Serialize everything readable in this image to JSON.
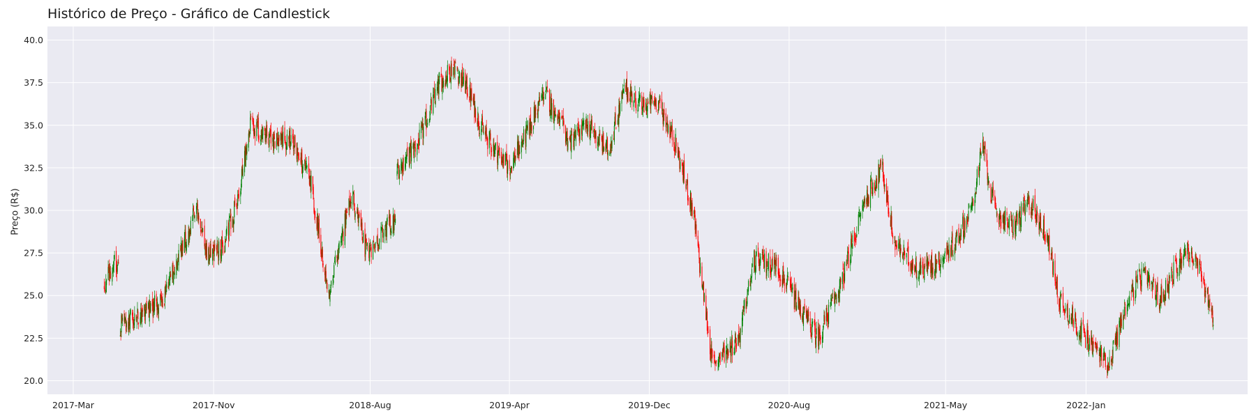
{
  "chart_data": {
    "type": "candlestick",
    "title": "Histórico de Preço - Gráfico de Candlestick",
    "xlabel": "",
    "ylabel": "Preço (R$)",
    "ylim": [
      19.2,
      40.8
    ],
    "yticks": [
      "20.0",
      "22.5",
      "25.0",
      "27.5",
      "30.0",
      "32.5",
      "35.0",
      "37.5",
      "40.0"
    ],
    "xticks": [
      "2017-Mar",
      "2017-Nov",
      "2018-Aug",
      "2019-Apr",
      "2019-Dec",
      "2020-Aug",
      "2021-May",
      "2022-Jan"
    ],
    "xtick_dates": [
      "2017-03-01",
      "2017-11-01",
      "2018-08-01",
      "2019-04-01",
      "2019-12-01",
      "2020-08-01",
      "2021-05-01",
      "2022-01-01"
    ],
    "xlim": [
      "2017-01-15",
      "2022-10-10"
    ],
    "grid": true,
    "colors": {
      "up": "#008000",
      "down": "#ff0000",
      "background": "#eaeaf2",
      "grid": "#ffffff"
    },
    "close_path": [
      [
        "2017-04-24",
        25.5
      ],
      [
        "2017-05-08",
        26.8
      ],
      [
        "2017-05-20",
        23.2
      ],
      [
        "2017-07-05",
        24.0
      ],
      [
        "2017-08-05",
        24.8
      ],
      [
        "2017-09-01",
        27.2
      ],
      [
        "2017-10-01",
        30.1
      ],
      [
        "2017-10-20",
        27.4
      ],
      [
        "2017-11-20",
        28.1
      ],
      [
        "2017-12-10",
        30.2
      ],
      [
        "2018-01-05",
        35.0
      ],
      [
        "2018-02-05",
        34.3
      ],
      [
        "2018-03-20",
        34.0
      ],
      [
        "2018-04-20",
        31.5
      ],
      [
        "2018-05-20",
        25.2
      ],
      [
        "2018-07-01",
        31.0
      ],
      [
        "2018-07-25",
        27.5
      ],
      [
        "2018-09-05",
        29.2
      ],
      [
        "2018-09-15",
        32.3
      ],
      [
        "2018-10-25",
        34.0
      ],
      [
        "2018-12-01",
        37.5
      ],
      [
        "2018-12-25",
        38.5
      ],
      [
        "2019-01-20",
        37.0
      ],
      [
        "2019-02-15",
        34.5
      ],
      [
        "2019-04-01",
        32.5
      ],
      [
        "2019-05-01",
        34.5
      ],
      [
        "2019-06-01",
        37.0
      ],
      [
        "2019-07-15",
        34.0
      ],
      [
        "2019-08-15",
        35.0
      ],
      [
        "2019-09-20",
        33.5
      ],
      [
        "2019-10-20",
        37.2
      ],
      [
        "2019-11-20",
        36.0
      ],
      [
        "2019-12-15",
        36.5
      ],
      [
        "2020-01-15",
        34.0
      ],
      [
        "2020-02-15",
        30.0
      ],
      [
        "2020-03-20",
        21.0
      ],
      [
        "2020-05-05",
        22.5
      ],
      [
        "2020-06-01",
        27.0
      ],
      [
        "2020-07-10",
        26.8
      ],
      [
        "2020-08-15",
        24.5
      ],
      [
        "2020-09-20",
        22.5
      ],
      [
        "2020-11-01",
        25.8
      ],
      [
        "2020-12-10",
        30.5
      ],
      [
        "2021-01-10",
        32.5
      ],
      [
        "2021-02-01",
        28.0
      ],
      [
        "2021-03-15",
        26.5
      ],
      [
        "2021-04-20",
        27.0
      ],
      [
        "2021-05-15",
        28.0
      ],
      [
        "2021-06-15",
        30.0
      ],
      [
        "2021-07-05",
        33.8
      ],
      [
        "2021-07-25",
        30.0
      ],
      [
        "2021-08-25",
        29.0
      ],
      [
        "2021-09-25",
        30.5
      ],
      [
        "2021-10-25",
        28.5
      ],
      [
        "2021-11-15",
        24.8
      ],
      [
        "2022-01-01",
        22.5
      ],
      [
        "2022-02-10",
        21.0
      ],
      [
        "2022-03-15",
        24.8
      ],
      [
        "2022-04-10",
        26.2
      ],
      [
        "2022-05-10",
        24.8
      ],
      [
        "2022-06-25",
        27.8
      ],
      [
        "2022-07-20",
        26.3
      ],
      [
        "2022-08-12",
        23.7
      ]
    ]
  }
}
